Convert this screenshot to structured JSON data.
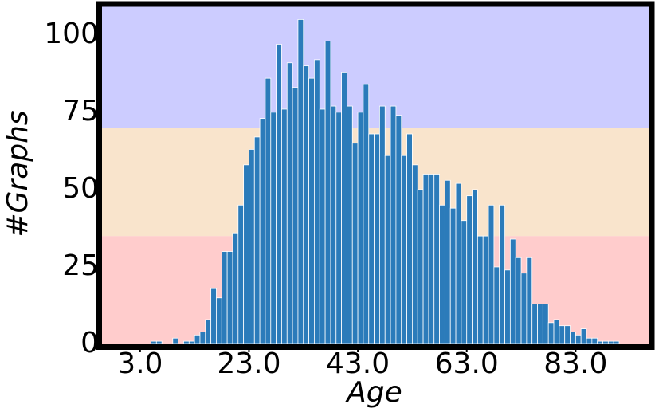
{
  "chart_data": {
    "type": "histogram",
    "xlabel": "Age",
    "ylabel": "#Graphs",
    "bins": [
      3,
      4,
      5,
      6,
      7,
      8,
      9,
      10,
      11,
      12,
      13,
      14,
      15,
      16,
      17,
      18,
      19,
      20,
      21,
      22,
      23,
      24,
      25,
      26,
      27,
      28,
      29,
      30,
      31,
      32,
      33,
      34,
      35,
      36,
      37,
      38,
      39,
      40,
      41,
      42,
      43,
      44,
      45,
      46,
      47,
      48,
      49,
      50,
      51,
      52,
      53,
      54,
      55,
      56,
      57,
      58,
      59,
      60,
      61,
      62,
      63,
      64,
      65,
      66,
      67,
      68,
      69,
      70,
      71,
      72,
      73,
      74,
      75,
      76,
      77,
      78,
      79,
      80,
      81,
      82,
      83,
      84,
      85,
      86,
      87,
      88,
      89,
      90,
      91
    ],
    "values": [
      0,
      0,
      1,
      1,
      0,
      0,
      2,
      0,
      1,
      1,
      3,
      4,
      8,
      18,
      15,
      30,
      30,
      36,
      45,
      58,
      63,
      67,
      73,
      86,
      75,
      97,
      76,
      91,
      83,
      105,
      90,
      86,
      92,
      76,
      98,
      77,
      75,
      88,
      77,
      65,
      75,
      84,
      68,
      68,
      77,
      61,
      77,
      74,
      61,
      68,
      58,
      50,
      55,
      55,
      55,
      45,
      53,
      44,
      52,
      40,
      48,
      50,
      35,
      35,
      45,
      25,
      45,
      24,
      34,
      28,
      23,
      28,
      13,
      13,
      13,
      7,
      8,
      6,
      6,
      4,
      3,
      5,
      2,
      2,
      1,
      1,
      1,
      1
    ],
    "color": "#2b7bba",
    "bands": [
      {
        "from": 0,
        "to": 35,
        "color": "#ffcccc"
      },
      {
        "from": 35,
        "to": 70,
        "color": "#f9e4cc"
      },
      {
        "from": 70,
        "to": 110,
        "color": "#ccccff"
      }
    ],
    "xlim": [
      -4,
      97
    ],
    "ylim": [
      0,
      110
    ],
    "xticks": [
      {
        "value": 3,
        "label": "3.0"
      },
      {
        "value": 23,
        "label": "23.0"
      },
      {
        "value": 43,
        "label": "43.0"
      },
      {
        "value": 63,
        "label": "63.0"
      },
      {
        "value": 83,
        "label": "83.0"
      }
    ],
    "yticks": [
      0,
      25,
      50,
      75,
      100
    ],
    "grid": false
  }
}
